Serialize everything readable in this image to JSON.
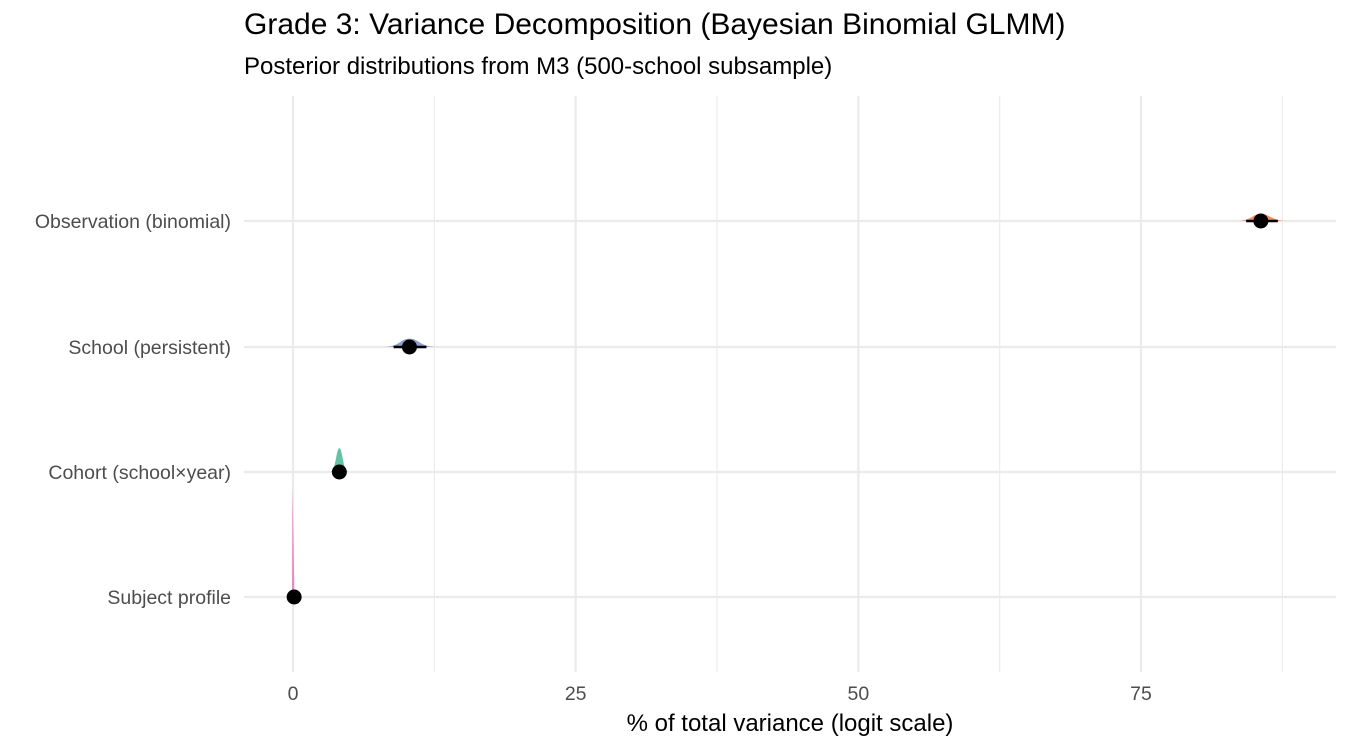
{
  "title": "Grade 3: Variance Decomposition (Bayesian Binomial GLMM)",
  "subtitle": "Posterior distributions from M3 (500-school subsample)",
  "chart_data": {
    "type": "halfeye",
    "title": "Grade 3: Variance Decomposition (Bayesian Binomial GLMM)",
    "subtitle": "Posterior distributions from M3 (500-school subsample)",
    "xlabel": "% of total variance (logit scale)",
    "ylabel": "",
    "xlim": [
      -4.3,
      92.3
    ],
    "x_ticks": [
      0,
      25,
      50,
      75
    ],
    "x_tick_labels": [
      "0",
      "25",
      "50",
      "75"
    ],
    "grid": true,
    "legend": "none",
    "categories": [
      "Observation (binomial)",
      "School (persistent)",
      "Cohort (school×year)",
      "Subject profile"
    ],
    "series": [
      {
        "name": "Observation (binomial)",
        "median": 85.6,
        "interval": [
          84.3,
          87.1
        ],
        "density_height": 0.3,
        "color": "#FC8D62"
      },
      {
        "name": "School (persistent)",
        "median": 10.3,
        "interval": [
          8.9,
          11.8
        ],
        "density_height": 0.35,
        "color": "#8DA0CB"
      },
      {
        "name": "Cohort (school×year)",
        "median": 4.1,
        "interval": [
          3.6,
          4.6
        ],
        "density_height": 1.0,
        "color": "#66C2A5"
      },
      {
        "name": "Subject profile",
        "median": 0.1,
        "interval": [
          0.0,
          0.2
        ],
        "density_height": 4.7,
        "color": "#E78AC3"
      }
    ]
  }
}
